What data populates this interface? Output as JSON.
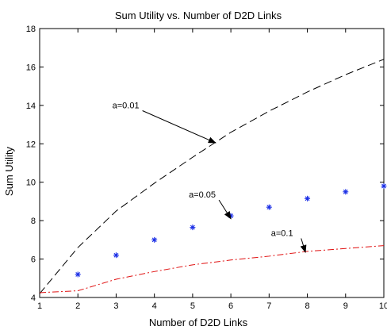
{
  "chart_data": {
    "type": "line",
    "title": "Sum Utility vs. Number of D2D Links",
    "xlabel": "Number of D2D Links",
    "ylabel": "Sum Utility",
    "xlim": [
      1,
      10
    ],
    "ylim": [
      4,
      18
    ],
    "xticks": [
      1,
      2,
      3,
      4,
      5,
      6,
      7,
      8,
      9,
      10
    ],
    "yticks": [
      4,
      6,
      8,
      10,
      12,
      14,
      16,
      18
    ],
    "grid": false,
    "series": [
      {
        "name": "a=0.01",
        "style": "dashed",
        "color": "#000000",
        "marker": "none",
        "x": [
          1,
          2,
          3,
          4,
          5,
          6,
          7,
          8,
          9,
          10
        ],
        "y": [
          4.2,
          6.6,
          8.5,
          9.95,
          11.3,
          12.6,
          13.7,
          14.7,
          15.6,
          16.4
        ]
      },
      {
        "name": "a=0.05",
        "style": "markers",
        "color": "#1a2ee6",
        "marker": "asterisk",
        "x": [
          2,
          3,
          4,
          5,
          6,
          7,
          8,
          9,
          10
        ],
        "y": [
          5.2,
          6.2,
          7.0,
          7.65,
          8.25,
          8.7,
          9.15,
          9.5,
          9.8
        ]
      },
      {
        "name": "a=0.1",
        "style": "dashdot",
        "color": "#e01010",
        "marker": "none",
        "x": [
          1,
          2,
          3,
          4,
          5,
          6,
          7,
          8,
          9,
          10
        ],
        "y": [
          4.25,
          4.35,
          4.95,
          5.35,
          5.7,
          5.95,
          6.15,
          6.4,
          6.55,
          6.7
        ]
      }
    ],
    "annotations": [
      {
        "text": "a=0.01",
        "text_x": 2.9,
        "text_y": 13.85,
        "arrow_to_x": 5.6,
        "arrow_to_y": 12.05
      },
      {
        "text": "a=0.05",
        "text_x": 4.9,
        "text_y": 9.2,
        "arrow_to_x": 6.0,
        "arrow_to_y": 8.1
      },
      {
        "text": "a=0.1",
        "text_x": 7.05,
        "text_y": 7.2,
        "arrow_to_x": 7.95,
        "arrow_to_y": 6.35
      }
    ]
  }
}
